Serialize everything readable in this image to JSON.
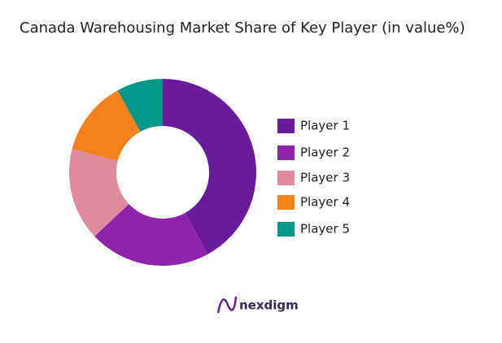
{
  "chart_data": {
    "type": "pie",
    "title": "Canada Warehousing Market Share of Key Player (in value%)",
    "categories": [
      "Player 1",
      "Player 2",
      "Player 3",
      "Player 4",
      "Player 5"
    ],
    "values": [
      42,
      21,
      16,
      13,
      8
    ],
    "colors": [
      "#6a1b9a",
      "#8e24aa",
      "#e08aa0",
      "#f5821f",
      "#009688"
    ],
    "donut": true
  },
  "brand": "nexdigm"
}
